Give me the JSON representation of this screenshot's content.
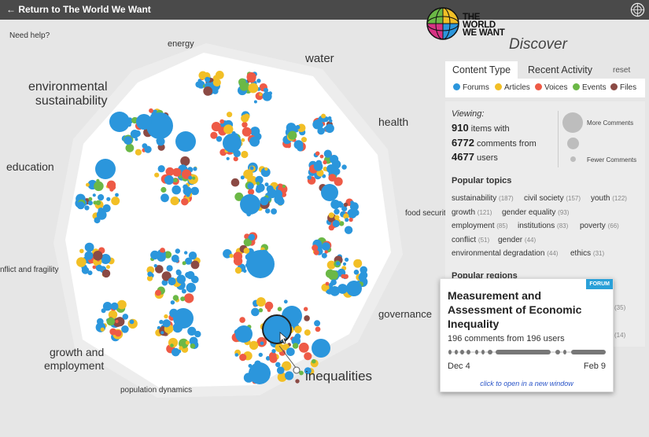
{
  "topbar": {
    "back_label": "← Return to The World We Want"
  },
  "help": {
    "label": "Need help?"
  },
  "brand": {
    "logo_line1": "THE",
    "logo_line2": "WORLD",
    "logo_line3": "WE WANT",
    "discover": "Discover"
  },
  "axis_labels": [
    {
      "text": "energy"
    },
    {
      "text": "water"
    },
    {
      "text": "health"
    },
    {
      "text": "food securit"
    },
    {
      "text": "governance"
    },
    {
      "text": "inequalities"
    },
    {
      "text": "population dynamics"
    },
    {
      "text": "growth and\nemployment"
    },
    {
      "text": "nflict and fragility"
    },
    {
      "text": "education"
    },
    {
      "text": "environmental\nsustainability"
    }
  ],
  "tabs": {
    "content_type": "Content Type",
    "recent_activity": "Recent Activity",
    "reset": "reset"
  },
  "legend": [
    {
      "label": "Forums",
      "color": "#2b96dc"
    },
    {
      "label": "Articles",
      "color": "#f2bf26"
    },
    {
      "label": "Voices",
      "color": "#ee5a46"
    },
    {
      "label": "Events",
      "color": "#6bb846"
    },
    {
      "label": "Files",
      "color": "#8b4a44"
    }
  ],
  "stats": {
    "viewing": "Viewing:",
    "items_num": "910",
    "items_label": " items with",
    "comments_num": "6772",
    "comments_label": " comments from",
    "users_num": "4677",
    "users_label": " users",
    "more_comments": "More Comments",
    "fewer_comments": "Fewer Comments"
  },
  "popular_topics": {
    "title": "Popular topics",
    "items": [
      {
        "label": "sustainability",
        "count": "(187)"
      },
      {
        "label": "civil society",
        "count": "(157)"
      },
      {
        "label": "youth",
        "count": "(122)"
      },
      {
        "label": "growth",
        "count": "(121)"
      },
      {
        "label": "gender equality",
        "count": "(93)"
      },
      {
        "label": "employment",
        "count": "(85)"
      },
      {
        "label": "institutions",
        "count": "(83)"
      },
      {
        "label": "poverty",
        "count": "(66)"
      },
      {
        "label": "conflict",
        "count": "(51)"
      },
      {
        "label": "gender",
        "count": "(44)"
      },
      {
        "label": "environmental degradation",
        "count": "(44)"
      },
      {
        "label": "ethics",
        "count": "(31)"
      }
    ]
  },
  "popular_regions": {
    "title": "Popular regions",
    "visible_counts": [
      "(35)",
      "(14)"
    ]
  },
  "tooltip": {
    "badge": "FORUM",
    "title": "Measurement and Assessment of Economic Inequality",
    "comments": "196 comments from 196 users",
    "start_date": "Dec 4",
    "end_date": "Feb 9",
    "link": "click to open in a new window"
  }
}
